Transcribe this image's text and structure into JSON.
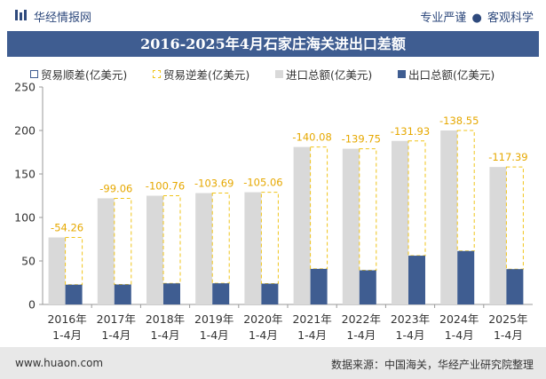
{
  "header": {
    "site_name": "华经情报网",
    "tagline_left": "专业严谨",
    "tagline_sep": "●",
    "tagline_right": "客观科学"
  },
  "title": "2016-2025年4月石家庄海关进出口差额",
  "legend": {
    "surplus": "贸易顺差(亿美元)",
    "deficit": "贸易逆差(亿美元)",
    "import": "进口总额(亿美元)",
    "export": "出口总额(亿美元)"
  },
  "colors": {
    "title_bg": "#3f5d91",
    "export": "#3f5d91",
    "import": "#d9d9d9",
    "deficit_border": "#f0c419",
    "deficit_label": "#e6a800",
    "footer_bg": "#e8e8e8"
  },
  "chart_data": {
    "type": "bar",
    "categories": [
      [
        "2016年",
        "1-4月"
      ],
      [
        "2017年",
        "1-4月"
      ],
      [
        "2018年",
        "1-4月"
      ],
      [
        "2019年",
        "1-4月"
      ],
      [
        "2020年",
        "1-4月"
      ],
      [
        "2021年",
        "1-4月"
      ],
      [
        "2022年",
        "1-4月"
      ],
      [
        "2023年",
        "1-4月"
      ],
      [
        "2024年",
        "1-4月"
      ],
      [
        "2025年",
        "1-4月"
      ]
    ],
    "series": [
      {
        "name": "进口总额(亿美元)",
        "values": [
          77,
          122,
          125,
          128,
          129,
          181,
          179,
          188,
          200,
          158
        ]
      },
      {
        "name": "出口总额(亿美元)",
        "values": [
          22.74,
          22.94,
          24.24,
          24.31,
          23.94,
          40.92,
          39.25,
          56.07,
          61.45,
          40.61
        ]
      },
      {
        "name": "贸易逆差(亿美元)",
        "values": [
          -54.26,
          -99.06,
          -100.76,
          -103.69,
          -105.06,
          -140.08,
          -139.75,
          -131.93,
          -138.55,
          -117.39
        ]
      }
    ],
    "ylim": [
      0,
      250
    ],
    "yticks": [
      0,
      50,
      100,
      150,
      200,
      250
    ],
    "grid": false,
    "legend_position": "top"
  },
  "footer": {
    "url": "www.huaon.com",
    "source": "数据来源：中国海关，华经产业研究院整理"
  }
}
